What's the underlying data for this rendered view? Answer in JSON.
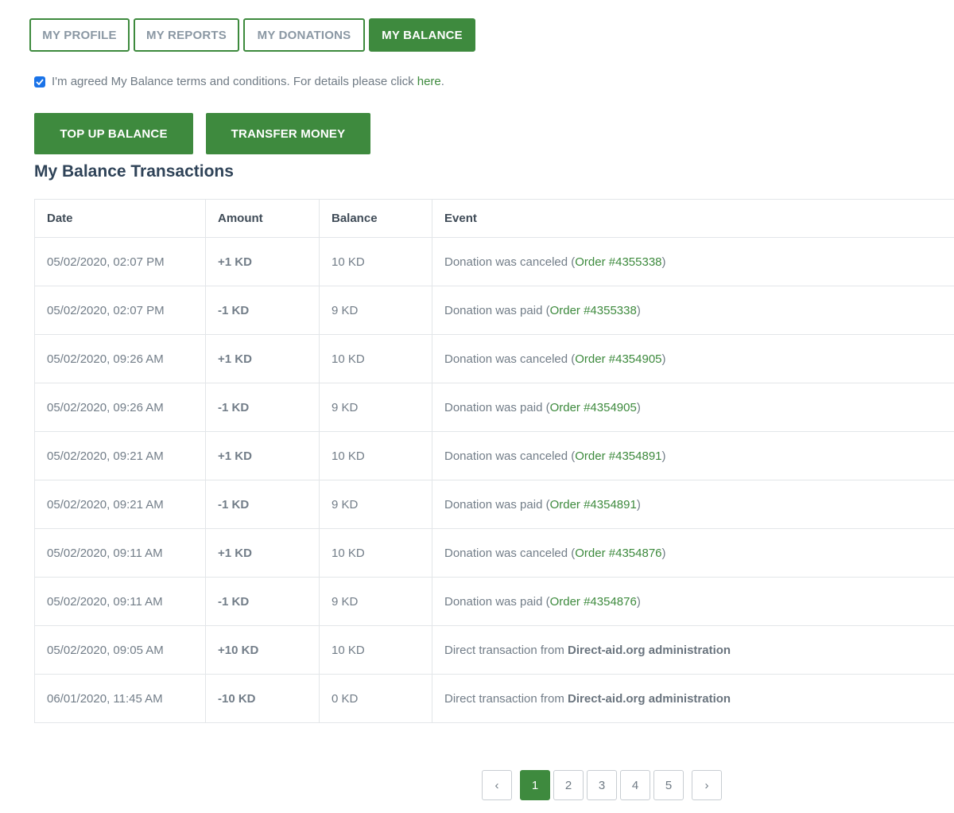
{
  "tabs": {
    "profile": "MY PROFILE",
    "reports": "MY REPORTS",
    "donations": "MY DONATIONS",
    "balance": "MY BALANCE"
  },
  "terms": {
    "text": "I'm agreed My Balance terms and conditions. For details please click ",
    "link": "here",
    "after": ".",
    "checked": true
  },
  "actions": {
    "top_up": "TOP UP BALANCE",
    "transfer": "TRANSFER MONEY"
  },
  "section_title": "My Balance Transactions",
  "table": {
    "headers": [
      "Date",
      "Amount",
      "Balance",
      "Event"
    ],
    "rows": [
      {
        "date": "05/02/2020, 02:07 PM",
        "amount": "+1 KD",
        "positive": true,
        "balance": "10 KD",
        "event_prefix": "Donation was canceled (",
        "event_link": "Order #4355338",
        "event_suffix": ")"
      },
      {
        "date": "05/02/2020, 02:07 PM",
        "amount": "-1 KD",
        "positive": false,
        "balance": "9 KD",
        "event_prefix": "Donation was paid (",
        "event_link": "Order #4355338",
        "event_suffix": ")"
      },
      {
        "date": "05/02/2020, 09:26 AM",
        "amount": "+1 KD",
        "positive": true,
        "balance": "10 KD",
        "event_prefix": "Donation was canceled (",
        "event_link": "Order #4354905",
        "event_suffix": ")"
      },
      {
        "date": "05/02/2020, 09:26 AM",
        "amount": "-1 KD",
        "positive": false,
        "balance": "9 KD",
        "event_prefix": "Donation was paid (",
        "event_link": "Order #4354905",
        "event_suffix": ")"
      },
      {
        "date": "05/02/2020, 09:21 AM",
        "amount": "+1 KD",
        "positive": true,
        "balance": "10 KD",
        "event_prefix": "Donation was canceled (",
        "event_link": "Order #4354891",
        "event_suffix": ")"
      },
      {
        "date": "05/02/2020, 09:21 AM",
        "amount": "-1 KD",
        "positive": false,
        "balance": "9 KD",
        "event_prefix": "Donation was paid (",
        "event_link": "Order #4354891",
        "event_suffix": ")"
      },
      {
        "date": "05/02/2020, 09:11 AM",
        "amount": "+1 KD",
        "positive": true,
        "balance": "10 KD",
        "event_prefix": "Donation was canceled (",
        "event_link": "Order #4354876",
        "event_suffix": ")"
      },
      {
        "date": "05/02/2020, 09:11 AM",
        "amount": "-1 KD",
        "positive": false,
        "balance": "9 KD",
        "event_prefix": "Donation was paid (",
        "event_link": "Order #4354876",
        "event_suffix": ")"
      },
      {
        "date": "05/02/2020, 09:05 AM",
        "amount": "+10 KD",
        "positive": true,
        "balance": "10 KD",
        "event_prefix": "Direct transaction from ",
        "event_strong": "Direct-aid.org administration"
      },
      {
        "date": "06/01/2020, 11:45 AM",
        "amount": "-10 KD",
        "positive": false,
        "balance": "0 KD",
        "event_prefix": "Direct transaction from ",
        "event_strong": "Direct-aid.org administration"
      }
    ]
  },
  "pagination": {
    "prev": "‹",
    "next": "›",
    "pages": [
      "1",
      "2",
      "3",
      "4",
      "5"
    ],
    "current": "1"
  },
  "colors": {
    "accent_green": "#3e8a3e",
    "positive_amount": "#2d8a22",
    "negative_amount": "#e0231e",
    "checkbox_blue": "#1a73e8"
  }
}
